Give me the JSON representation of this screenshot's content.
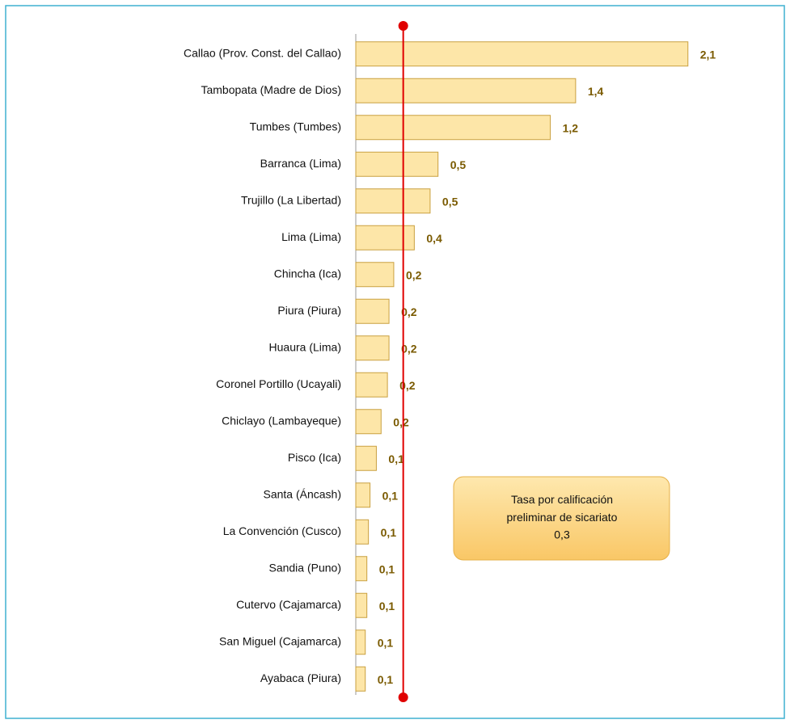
{
  "chart_data": {
    "type": "hbar",
    "categories": [
      "Callao (Prov. Const. del Callao)",
      "Tambopata (Madre de Dios)",
      "Tumbes (Tumbes)",
      "Barranca (Lima)",
      "Trujillo (La Libertad)",
      "Lima (Lima)",
      "Chincha (Ica)",
      "Piura (Piura)",
      "Huaura (Lima)",
      "Coronel Portillo (Ucayali)",
      "Chiclayo (Lambayeque)",
      "Pisco (Ica)",
      "Santa (Áncash)",
      "La Convención (Cusco)",
      "Sandia (Puno)",
      "Cutervo (Cajamarca)",
      "San Miguel (Cajamarca)",
      "Ayabaca (Piura)"
    ],
    "values": [
      2.1,
      1.39,
      1.23,
      0.52,
      0.47,
      0.37,
      0.24,
      0.21,
      0.21,
      0.2,
      0.16,
      0.13,
      0.09,
      0.08,
      0.07,
      0.07,
      0.06,
      0.06
    ],
    "value_labels": [
      "2,1",
      "1,4",
      "1,2",
      "0,5",
      "0,5",
      "0,4",
      "0,2",
      "0,2",
      "0,2",
      "0,2",
      "0,2",
      "0,1",
      "0,1",
      "0,1",
      "0,1",
      "0,1",
      "0,1",
      "0,1"
    ],
    "color": "#fde6a8",
    "xlim": [
      0,
      2.5
    ],
    "reference_line": {
      "value": 0.3,
      "color": "#e00000",
      "label": "Tasa por calificación preliminar de sicariato",
      "value_label": "0,3"
    }
  }
}
